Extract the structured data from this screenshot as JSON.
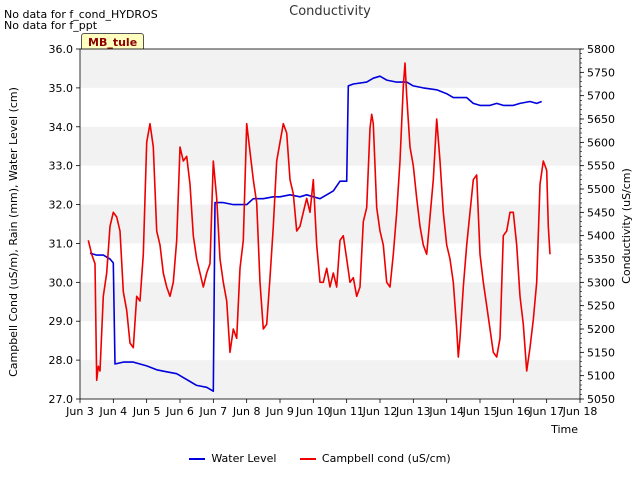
{
  "notes": [
    "No data for f_cond_HYDROS",
    "No data for f_ppt"
  ],
  "badge": "MB_tule",
  "chart_data": {
    "type": "line",
    "title": "Conductivity",
    "xlabel": "Time",
    "ylabel_left": "Campbell Cond (uS/m), Rain (mm), Water Level (cm)",
    "ylabel_right": "Conductivity (uS/cm)",
    "x_ticks": [
      {
        "day": 3,
        "label": "Jun 3"
      },
      {
        "day": 4,
        "label": "Jun 4"
      },
      {
        "day": 5,
        "label": "Jun 5"
      },
      {
        "day": 6,
        "label": "Jun 6"
      },
      {
        "day": 7,
        "label": "Jun 7"
      },
      {
        "day": 8,
        "label": "Jun 8"
      },
      {
        "day": 9,
        "label": "Jun 9"
      },
      {
        "day": 10,
        "label": "Jun 10"
      },
      {
        "day": 11,
        "label": "Jun 11"
      },
      {
        "day": 12,
        "label": "Jun 12"
      },
      {
        "day": 13,
        "label": "Jun 13"
      },
      {
        "day": 14,
        "label": "Jun 14"
      },
      {
        "day": 15,
        "label": "Jun 15"
      },
      {
        "day": 16,
        "label": "Jun 16"
      },
      {
        "day": 17,
        "label": "Jun 17"
      },
      {
        "day": 18,
        "label": "Jun 18"
      }
    ],
    "xlim": [
      3,
      18
    ],
    "y_left": {
      "ylim": [
        27,
        36
      ],
      "ticks": [
        "27.0",
        "28.0",
        "29.0",
        "30.0",
        "31.0",
        "32.0",
        "33.0",
        "34.0",
        "35.0",
        "36.0"
      ]
    },
    "y_right": {
      "ylim": [
        5050,
        5800
      ],
      "ticks": [
        "5050",
        "5100",
        "5150",
        "5200",
        "5250",
        "5300",
        "5350",
        "5400",
        "5450",
        "5500",
        "5550",
        "5600",
        "5650",
        "5700",
        "5750",
        "5800"
      ]
    },
    "grid": "horizontal bands",
    "legend_position": "bottom",
    "series": [
      {
        "name": "Water Level",
        "axis": "left",
        "color": "#0000dd",
        "points": [
          [
            3.3,
            30.75
          ],
          [
            3.5,
            30.7
          ],
          [
            3.7,
            30.7
          ],
          [
            3.9,
            30.6
          ],
          [
            4.0,
            30.5
          ],
          [
            4.05,
            27.9
          ],
          [
            4.3,
            27.95
          ],
          [
            4.6,
            27.95
          ],
          [
            4.8,
            27.9
          ],
          [
            5.0,
            27.85
          ],
          [
            5.3,
            27.75
          ],
          [
            5.6,
            27.7
          ],
          [
            5.9,
            27.65
          ],
          [
            6.1,
            27.55
          ],
          [
            6.3,
            27.45
          ],
          [
            6.5,
            27.35
          ],
          [
            6.8,
            27.3
          ],
          [
            7.0,
            27.2
          ],
          [
            7.05,
            32.05
          ],
          [
            7.3,
            32.05
          ],
          [
            7.6,
            32.0
          ],
          [
            8.0,
            32.0
          ],
          [
            8.2,
            32.15
          ],
          [
            8.5,
            32.15
          ],
          [
            8.8,
            32.2
          ],
          [
            9.0,
            32.2
          ],
          [
            9.3,
            32.25
          ],
          [
            9.6,
            32.2
          ],
          [
            9.8,
            32.25
          ],
          [
            10.0,
            32.2
          ],
          [
            10.2,
            32.15
          ],
          [
            10.4,
            32.25
          ],
          [
            10.6,
            32.35
          ],
          [
            10.8,
            32.6
          ],
          [
            11.0,
            32.6
          ],
          [
            11.05,
            35.05
          ],
          [
            11.2,
            35.1
          ],
          [
            11.6,
            35.15
          ],
          [
            11.8,
            35.25
          ],
          [
            12.0,
            35.3
          ],
          [
            12.2,
            35.2
          ],
          [
            12.5,
            35.15
          ],
          [
            12.8,
            35.15
          ],
          [
            13.0,
            35.05
          ],
          [
            13.3,
            35.0
          ],
          [
            13.7,
            34.95
          ],
          [
            14.0,
            34.85
          ],
          [
            14.2,
            34.75
          ],
          [
            14.6,
            34.75
          ],
          [
            14.8,
            34.6
          ],
          [
            15.0,
            34.55
          ],
          [
            15.3,
            34.55
          ],
          [
            15.5,
            34.6
          ],
          [
            15.7,
            34.55
          ],
          [
            16.0,
            34.55
          ],
          [
            16.2,
            34.6
          ],
          [
            16.5,
            34.65
          ],
          [
            16.7,
            34.6
          ],
          [
            16.85,
            34.65
          ]
        ]
      },
      {
        "name": "Campbell cond (uS/cm)",
        "axis": "right",
        "color": "#ee0000",
        "points": [
          [
            3.25,
            5390
          ],
          [
            3.35,
            5360
          ],
          [
            3.45,
            5340
          ],
          [
            3.5,
            5090
          ],
          [
            3.55,
            5120
          ],
          [
            3.6,
            5110
          ],
          [
            3.7,
            5270
          ],
          [
            3.8,
            5320
          ],
          [
            3.9,
            5420
          ],
          [
            4.0,
            5450
          ],
          [
            4.1,
            5440
          ],
          [
            4.2,
            5410
          ],
          [
            4.3,
            5280
          ],
          [
            4.4,
            5240
          ],
          [
            4.5,
            5170
          ],
          [
            4.6,
            5160
          ],
          [
            4.7,
            5270
          ],
          [
            4.8,
            5260
          ],
          [
            4.9,
            5360
          ],
          [
            5.0,
            5600
          ],
          [
            5.1,
            5640
          ],
          [
            5.2,
            5590
          ],
          [
            5.3,
            5410
          ],
          [
            5.4,
            5380
          ],
          [
            5.5,
            5320
          ],
          [
            5.6,
            5290
          ],
          [
            5.7,
            5270
          ],
          [
            5.8,
            5300
          ],
          [
            5.9,
            5390
          ],
          [
            6.0,
            5590
          ],
          [
            6.1,
            5560
          ],
          [
            6.2,
            5570
          ],
          [
            6.3,
            5510
          ],
          [
            6.4,
            5400
          ],
          [
            6.5,
            5350
          ],
          [
            6.6,
            5320
          ],
          [
            6.7,
            5290
          ],
          [
            6.8,
            5320
          ],
          [
            6.9,
            5340
          ],
          [
            7.0,
            5560
          ],
          [
            7.1,
            5480
          ],
          [
            7.2,
            5350
          ],
          [
            7.3,
            5300
          ],
          [
            7.4,
            5260
          ],
          [
            7.5,
            5150
          ],
          [
            7.6,
            5200
          ],
          [
            7.7,
            5180
          ],
          [
            7.8,
            5330
          ],
          [
            7.9,
            5390
          ],
          [
            8.0,
            5640
          ],
          [
            8.1,
            5580
          ],
          [
            8.2,
            5520
          ],
          [
            8.3,
            5470
          ],
          [
            8.4,
            5300
          ],
          [
            8.5,
            5200
          ],
          [
            8.6,
            5210
          ],
          [
            8.7,
            5310
          ],
          [
            8.8,
            5420
          ],
          [
            8.9,
            5560
          ],
          [
            9.0,
            5600
          ],
          [
            9.1,
            5640
          ],
          [
            9.2,
            5620
          ],
          [
            9.3,
            5520
          ],
          [
            9.4,
            5490
          ],
          [
            9.5,
            5410
          ],
          [
            9.6,
            5420
          ],
          [
            9.7,
            5450
          ],
          [
            9.8,
            5480
          ],
          [
            9.9,
            5450
          ],
          [
            10.0,
            5520
          ],
          [
            10.1,
            5380
          ],
          [
            10.2,
            5300
          ],
          [
            10.3,
            5300
          ],
          [
            10.4,
            5330
          ],
          [
            10.5,
            5290
          ],
          [
            10.6,
            5320
          ],
          [
            10.7,
            5290
          ],
          [
            10.8,
            5390
          ],
          [
            10.9,
            5400
          ],
          [
            11.0,
            5350
          ],
          [
            11.1,
            5300
          ],
          [
            11.2,
            5310
          ],
          [
            11.3,
            5270
          ],
          [
            11.4,
            5290
          ],
          [
            11.5,
            5430
          ],
          [
            11.6,
            5460
          ],
          [
            11.7,
            5630
          ],
          [
            11.75,
            5660
          ],
          [
            11.8,
            5640
          ],
          [
            11.9,
            5460
          ],
          [
            12.0,
            5410
          ],
          [
            12.1,
            5380
          ],
          [
            12.2,
            5300
          ],
          [
            12.3,
            5290
          ],
          [
            12.4,
            5360
          ],
          [
            12.5,
            5450
          ],
          [
            12.6,
            5560
          ],
          [
            12.7,
            5720
          ],
          [
            12.75,
            5770
          ],
          [
            12.8,
            5700
          ],
          [
            12.9,
            5590
          ],
          [
            13.0,
            5550
          ],
          [
            13.1,
            5480
          ],
          [
            13.2,
            5420
          ],
          [
            13.3,
            5380
          ],
          [
            13.4,
            5360
          ],
          [
            13.5,
            5440
          ],
          [
            13.6,
            5520
          ],
          [
            13.7,
            5650
          ],
          [
            13.8,
            5560
          ],
          [
            13.9,
            5450
          ],
          [
            14.0,
            5380
          ],
          [
            14.1,
            5350
          ],
          [
            14.2,
            5300
          ],
          [
            14.3,
            5200
          ],
          [
            14.35,
            5140
          ],
          [
            14.4,
            5180
          ],
          [
            14.5,
            5290
          ],
          [
            14.6,
            5380
          ],
          [
            14.7,
            5450
          ],
          [
            14.8,
            5520
          ],
          [
            14.9,
            5530
          ],
          [
            15.0,
            5360
          ],
          [
            15.1,
            5300
          ],
          [
            15.2,
            5250
          ],
          [
            15.3,
            5200
          ],
          [
            15.4,
            5150
          ],
          [
            15.5,
            5140
          ],
          [
            15.6,
            5180
          ],
          [
            15.7,
            5400
          ],
          [
            15.8,
            5410
          ],
          [
            15.9,
            5450
          ],
          [
            16.0,
            5450
          ],
          [
            16.1,
            5380
          ],
          [
            16.2,
            5270
          ],
          [
            16.3,
            5210
          ],
          [
            16.4,
            5110
          ],
          [
            16.5,
            5160
          ],
          [
            16.6,
            5220
          ],
          [
            16.7,
            5300
          ],
          [
            16.8,
            5510
          ],
          [
            16.9,
            5560
          ],
          [
            17.0,
            5540
          ],
          [
            17.05,
            5420
          ],
          [
            17.1,
            5360
          ]
        ]
      }
    ]
  }
}
